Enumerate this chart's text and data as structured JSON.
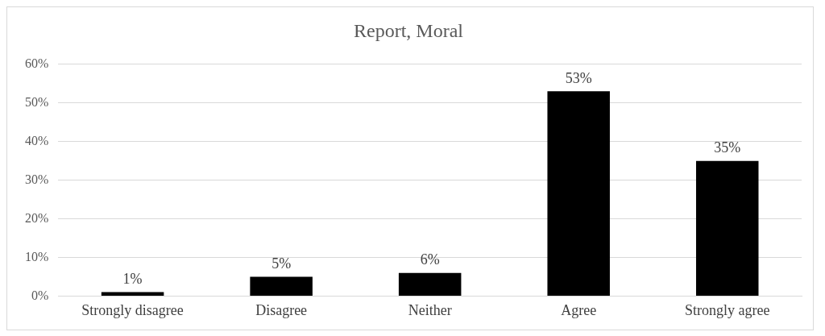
{
  "chart_data": {
    "type": "bar",
    "title": "Report, Moral",
    "categories": [
      "Strongly disagree",
      "Disagree",
      "Neither",
      "Agree",
      "Strongly agree"
    ],
    "values": [
      1,
      5,
      6,
      53,
      35
    ],
    "value_labels": [
      "1%",
      "5%",
      "6%",
      "53%",
      "35%"
    ],
    "color": "#000000",
    "ylim": [
      0,
      60
    ],
    "yticks": [
      {
        "value": 0,
        "label": "0%"
      },
      {
        "value": 10,
        "label": "10%"
      },
      {
        "value": 20,
        "label": "20%"
      },
      {
        "value": 30,
        "label": "30%"
      },
      {
        "value": 40,
        "label": "40%"
      },
      {
        "value": 50,
        "label": "50%"
      },
      {
        "value": 60,
        "label": "60%"
      }
    ],
    "grid": "y",
    "legend": false
  }
}
